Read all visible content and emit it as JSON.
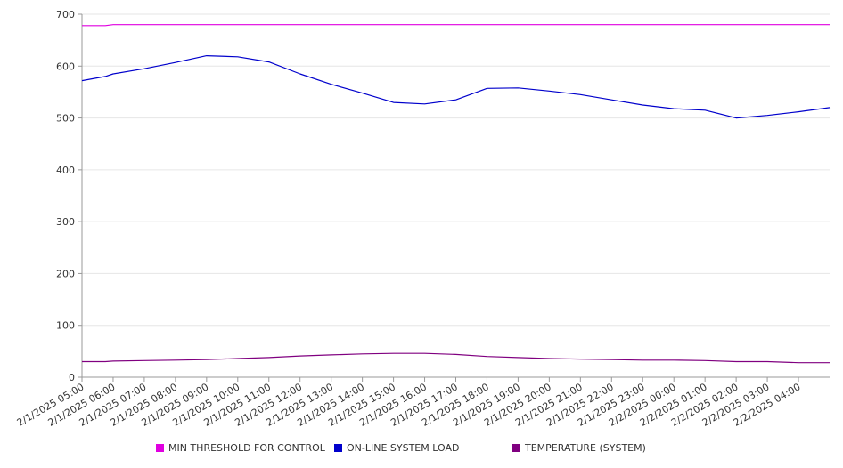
{
  "chart_data": {
    "type": "line",
    "title": "",
    "xlabel": "",
    "ylabel": "",
    "ylim": [
      0,
      700
    ],
    "yticks": [
      0,
      100,
      200,
      300,
      400,
      500,
      600,
      700
    ],
    "x_ticks": [
      "2/1/2025 05:00",
      "2/1/2025 06:00",
      "2/1/2025 07:00",
      "2/1/2025 08:00",
      "2/1/2025 09:00",
      "2/1/2025 10:00",
      "2/1/2025 11:00",
      "2/1/2025 12:00",
      "2/1/2025 13:00",
      "2/1/2025 14:00",
      "2/1/2025 15:00",
      "2/1/2025 16:00",
      "2/1/2025 17:00",
      "2/1/2025 18:00",
      "2/1/2025 19:00",
      "2/1/2025 20:00",
      "2/1/2025 21:00",
      "2/1/2025 22:00",
      "2/1/2025 23:00",
      "2/2/2025 00:00",
      "2/2/2025 01:00",
      "2/2/2025 02:00",
      "2/2/2025 03:00",
      "2/2/2025 04:00"
    ],
    "x": [
      "2/1/2025 05:00",
      "2/1/2025 05:45",
      "2/1/2025 06:00",
      "2/1/2025 07:00",
      "2/1/2025 08:00",
      "2/1/2025 09:00",
      "2/1/2025 10:00",
      "2/1/2025 11:00",
      "2/1/2025 12:00",
      "2/1/2025 13:00",
      "2/1/2025 14:00",
      "2/1/2025 15:00",
      "2/1/2025 16:00",
      "2/1/2025 17:00",
      "2/1/2025 18:00",
      "2/1/2025 19:00",
      "2/1/2025 20:00",
      "2/1/2025 21:00",
      "2/1/2025 22:00",
      "2/1/2025 23:00",
      "2/2/2025 00:00",
      "2/2/2025 01:00",
      "2/2/2025 02:00",
      "2/2/2025 03:00",
      "2/2/2025 04:00",
      "2/2/2025 05:00"
    ],
    "series": [
      {
        "name": "MIN THRESHOLD FOR CONTROL",
        "color": "#e000e0",
        "values": [
          678,
          678,
          680,
          680,
          680,
          680,
          680,
          680,
          680,
          680,
          680,
          680,
          680,
          680,
          680,
          680,
          680,
          680,
          680,
          680,
          680,
          680,
          680,
          680,
          680,
          680
        ]
      },
      {
        "name": "ON-LINE SYSTEM LOAD",
        "color": "#0000cc",
        "values": [
          572,
          580,
          585,
          595,
          607,
          620,
          618,
          608,
          585,
          565,
          548,
          530,
          527,
          535,
          557,
          558,
          552,
          545,
          535,
          525,
          518,
          515,
          500,
          505,
          512,
          520
        ]
      },
      {
        "name": "TEMPERATURE (SYSTEM)",
        "color": "#800080",
        "values": [
          30,
          30,
          31,
          32,
          33,
          34,
          36,
          38,
          41,
          43,
          45,
          46,
          46,
          44,
          40,
          38,
          36,
          35,
          34,
          33,
          33,
          32,
          30,
          30,
          28,
          28
        ]
      }
    ]
  }
}
